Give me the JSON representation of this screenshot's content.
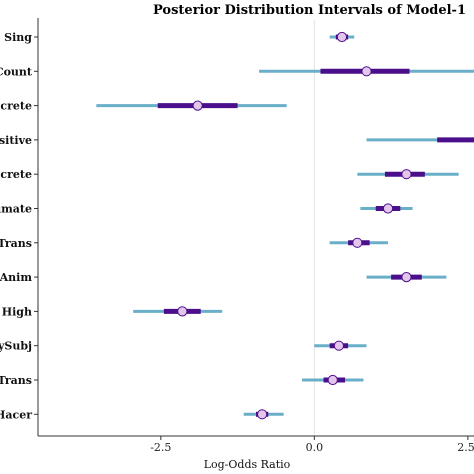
{
  "chart_data": {
    "type": "interval",
    "title": "Posterior Distribution Intervals of Model-1",
    "xlabel": "Log-Odds Ratio",
    "ylabel": "",
    "xlim": [
      -4.5,
      2.6
    ],
    "x_ticks": [
      -2.5,
      0.0,
      2.5
    ],
    "x_tick_labels": [
      "-2.5",
      "0.0",
      "2.5"
    ],
    "reference_line": 0,
    "grid": false,
    "colors": {
      "outer": "#6aafc9",
      "inner": "#4b0f8c",
      "point_fill": "#e4c6ec",
      "point_stroke": "#4b0f8c",
      "reference": "#e3e3e3"
    },
    "parameters": [
      {
        "label": "bj: Sing",
        "median": 0.45,
        "inner": [
          0.35,
          0.55
        ],
        "outer": [
          0.25,
          0.65
        ]
      },
      {
        "label": "Count",
        "median": 0.85,
        "inner": [
          0.1,
          1.55
        ],
        "outer": [
          -0.9,
          2.65
        ]
      },
      {
        "label": "oncrete",
        "median": -1.9,
        "inner": [
          -2.55,
          -1.25
        ],
        "outer": [
          -3.55,
          -0.45
        ]
      },
      {
        "label": "ansitive",
        "median": 2.8,
        "inner": [
          2.0,
          2.95
        ],
        "outer": [
          0.85,
          2.95
        ]
      },
      {
        "label": "oncrete",
        "median": 1.5,
        "inner": [
          1.15,
          1.8
        ],
        "outer": [
          0.7,
          2.35
        ]
      },
      {
        "label": "nimate",
        "median": 1.2,
        "inner": [
          1.0,
          1.4
        ],
        "outer": [
          0.75,
          1.6
        ]
      },
      {
        "label": ": Trans",
        "median": 0.7,
        "inner": [
          0.55,
          0.9
        ],
        "outer": [
          0.25,
          1.2
        ]
      },
      {
        "label": ": Anim",
        "median": 1.5,
        "inner": [
          1.25,
          1.75
        ],
        "outer": [
          0.85,
          2.15
        ]
      },
      {
        "label": "bj: High",
        "median": -2.15,
        "inner": [
          -2.45,
          -1.85
        ],
        "outer": [
          -2.95,
          -1.5
        ]
      },
      {
        "label": "cySubj",
        "median": 0.4,
        "inner": [
          0.25,
          0.55
        ],
        "outer": [
          0.0,
          0.85
        ]
      },
      {
        "label": ": Trans",
        "median": 0.3,
        "inner": [
          0.15,
          0.5
        ],
        "outer": [
          -0.2,
          0.8
        ]
      },
      {
        "label": "Hacer",
        "median": -0.85,
        "inner": [
          -0.95,
          -0.75
        ],
        "outer": [
          -1.15,
          -0.5
        ]
      }
    ]
  }
}
